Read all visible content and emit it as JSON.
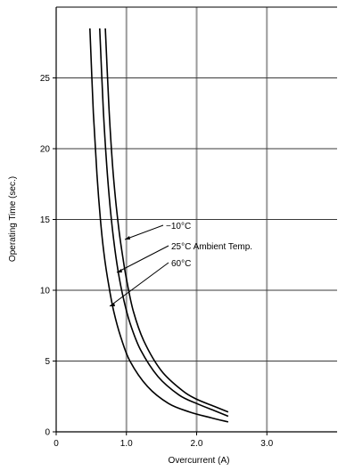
{
  "chart_data": {
    "type": "line",
    "title": "",
    "xlabel": "Overcurrent (A)",
    "ylabel": "Operating Time (sec.)",
    "xlim": [
      0,
      4.0
    ],
    "ylim": [
      0,
      30
    ],
    "x_ticks": [
      0,
      1.0,
      2.0,
      3.0
    ],
    "x_tick_labels": [
      "0",
      "1.0",
      "2.0",
      "3.0"
    ],
    "y_ticks": [
      0,
      5,
      10,
      15,
      20,
      25
    ],
    "y_tick_labels": [
      "0",
      "5",
      "10",
      "15",
      "20",
      "25"
    ],
    "grid": true,
    "series": [
      {
        "name": "−10°C",
        "x": [
          0.7,
          0.75,
          0.8,
          0.85,
          0.9,
          0.95,
          1.0,
          1.1,
          1.25,
          1.5,
          1.8,
          2.0,
          2.25,
          2.45
        ],
        "y": [
          28.5,
          23.0,
          19.0,
          16.2,
          14.0,
          12.3,
          10.8,
          8.5,
          6.4,
          4.3,
          2.9,
          2.3,
          1.8,
          1.4
        ]
      },
      {
        "name": "25°C Ambient Temp.",
        "x": [
          0.62,
          0.67,
          0.72,
          0.77,
          0.82,
          0.88,
          0.95,
          1.05,
          1.2,
          1.45,
          1.75,
          2.0,
          2.25,
          2.45
        ],
        "y": [
          28.5,
          22.8,
          18.8,
          15.8,
          13.5,
          11.4,
          9.6,
          7.7,
          5.8,
          3.9,
          2.6,
          2.0,
          1.5,
          1.1
        ]
      },
      {
        "name": "60°C",
        "x": [
          0.48,
          0.53,
          0.58,
          0.63,
          0.68,
          0.75,
          0.82,
          0.92,
          1.05,
          1.3,
          1.6,
          1.9,
          2.2,
          2.45
        ],
        "y": [
          28.5,
          22.5,
          18.2,
          15.0,
          12.6,
          10.3,
          8.5,
          6.7,
          5.0,
          3.2,
          2.0,
          1.4,
          1.0,
          0.7
        ]
      }
    ],
    "annotations": [
      "−10°C",
      "25°C Ambient Temp.",
      "60°C"
    ]
  }
}
